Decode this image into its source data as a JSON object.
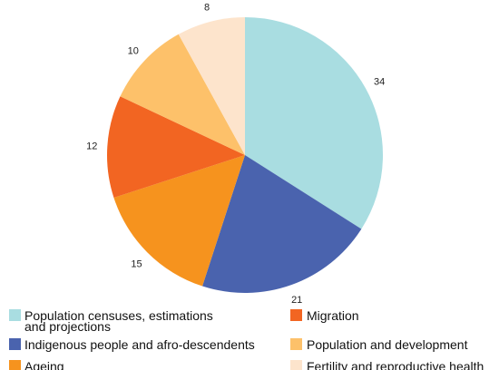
{
  "chart_data": {
    "type": "pie",
    "title": "",
    "slices": [
      {
        "label": "Population censuses, estimations and projections",
        "legend_lines": [
          "Population censuses, estimations",
          "and projections"
        ],
        "value": 34,
        "value_label": "34",
        "color": "#a9dde1"
      },
      {
        "label": "Indigenous people and afro-descendents",
        "legend_lines": [
          "Indigenous people and afro-descendents"
        ],
        "value": 21,
        "value_label": "21",
        "color": "#4a63ae"
      },
      {
        "label": "Ageing",
        "legend_lines": [
          "Ageing"
        ],
        "value": 15,
        "value_label": "15",
        "color": "#f6931e"
      },
      {
        "label": "Migration",
        "legend_lines": [
          "Migration"
        ],
        "value": 12,
        "value_label": "12",
        "color": "#f26522"
      },
      {
        "label": "Population and development",
        "legend_lines": [
          "Population and development"
        ],
        "value": 10,
        "value_label": "10",
        "color": "#fdc16a"
      },
      {
        "label": "Fertility and reproductive health",
        "legend_lines": [
          "Fertility and reproductive health"
        ],
        "value": 8,
        "value_label": "8",
        "color": "#fde4cc"
      }
    ],
    "legend_position": "bottom",
    "start_angle": "top",
    "direction": "clockwise"
  }
}
